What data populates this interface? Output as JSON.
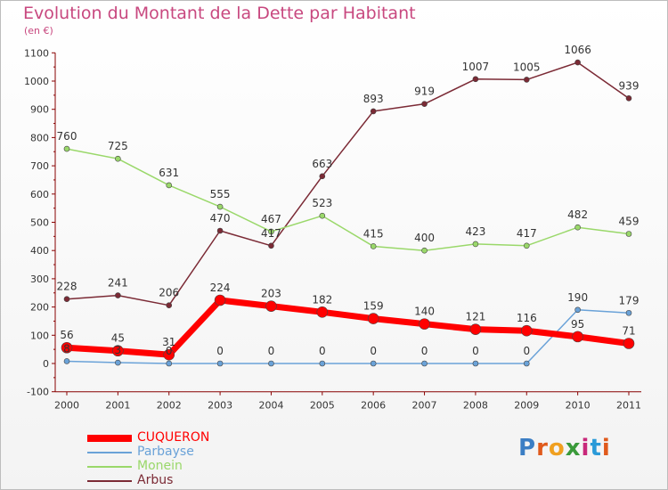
{
  "chart_data": {
    "type": "line",
    "title": "Evolution du Montant de la Dette par Habitant",
    "subtitle": "(en €)",
    "x": [
      "2000",
      "2001",
      "2002",
      "2003",
      "2004",
      "2005",
      "2006",
      "2007",
      "2008",
      "2009",
      "2010",
      "2011"
    ],
    "ylim": [
      -100,
      1100
    ],
    "yticks": [
      -100,
      0,
      100,
      200,
      300,
      400,
      500,
      600,
      700,
      800,
      900,
      1000,
      1100
    ],
    "grid": false,
    "legend_position": "bottom-left",
    "series": [
      {
        "name": "CUQUERON",
        "color": "#ff0000",
        "values": [
          56,
          45,
          31,
          224,
          203,
          182,
          159,
          140,
          121,
          116,
          95,
          71
        ]
      },
      {
        "name": "Parbayse",
        "color": "#6aa2d8",
        "values": [
          8,
          3,
          0,
          0,
          0,
          0,
          0,
          0,
          0,
          0,
          190,
          179
        ]
      },
      {
        "name": "Monein",
        "color": "#9ad86a",
        "values": [
          760,
          725,
          631,
          555,
          467,
          523,
          415,
          400,
          423,
          417,
          482,
          459
        ]
      },
      {
        "name": "Arbus",
        "color": "#7b2a35",
        "values": [
          228,
          241,
          206,
          470,
          417,
          663,
          893,
          919,
          1007,
          1005,
          1066,
          939
        ]
      }
    ],
    "data_labels": {
      "CUQUERON": [
        "56",
        "45",
        "31",
        "224",
        "203",
        "182",
        "159",
        "140",
        "121",
        "116",
        "95",
        "71"
      ],
      "Parbayse": [
        "8",
        "3",
        "0",
        "0",
        "0",
        "0",
        "0",
        "0",
        "0",
        "0",
        "190",
        "179"
      ],
      "Monein": [
        "760",
        "725",
        "631",
        "555",
        "467",
        "523",
        "415",
        "400",
        "423",
        "417",
        "482",
        "459"
      ],
      "Arbus": [
        "228",
        "241",
        "206",
        "470",
        "417",
        "663",
        "893",
        "919",
        "1007",
        "1005",
        "1066",
        "939"
      ]
    }
  },
  "logo": {
    "text": "Proxiti",
    "letter_colors": [
      "#3b7ec4",
      "#e05a1c",
      "#f0a020",
      "#3a9a3a",
      "#c8287a",
      "#2a9ad8",
      "#e05a1c"
    ]
  }
}
